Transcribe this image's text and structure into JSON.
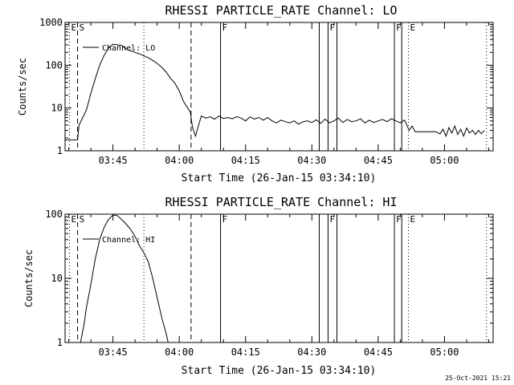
{
  "stamp": "25-Oct-2021 15:21",
  "chart_data": [
    {
      "type": "line",
      "title": "RHESSI PARTICLE_RATE Channel: LO",
      "xlabel": "Start Time (26-Jan-15 03:34:10)",
      "ylabel": "Counts/sec",
      "y_scale": "log",
      "ylim": [
        1,
        1000
      ],
      "xlim": [
        "03:34:10",
        "05:11:00"
      ],
      "yticks": [
        "1",
        "10",
        "100",
        "1000"
      ],
      "xticks": [
        "03:45",
        "04:00",
        "04:15",
        "04:30",
        "04:45",
        "05:00"
      ],
      "legend": {
        "placement": "top-left",
        "label": "Channel: LO"
      },
      "series": [
        {
          "name": "Channel: LO",
          "points": [
            [
              "03:34:10",
              1.8
            ],
            [
              "03:37:00",
              1.8
            ],
            [
              "03:37:20",
              4.0
            ],
            [
              "03:38:00",
              5.5
            ],
            [
              "03:39:00",
              9
            ],
            [
              "03:40:00",
              22
            ],
            [
              "03:41:00",
              48
            ],
            [
              "03:42:00",
              100
            ],
            [
              "03:43:00",
              170
            ],
            [
              "03:44:00",
              250
            ],
            [
              "03:45:00",
              310
            ],
            [
              "03:46:00",
              300
            ],
            [
              "03:47:00",
              290
            ],
            [
              "03:48:00",
              240
            ],
            [
              "03:49:00",
              220
            ],
            [
              "03:50:00",
              200
            ],
            [
              "03:51:00",
              185
            ],
            [
              "03:52:00",
              165
            ],
            [
              "03:53:00",
              150
            ],
            [
              "03:54:00",
              130
            ],
            [
              "03:55:00",
              110
            ],
            [
              "03:56:00",
              90
            ],
            [
              "03:57:00",
              70
            ],
            [
              "03:58:00",
              50
            ],
            [
              "03:59:00",
              38
            ],
            [
              "04:00:00",
              25
            ],
            [
              "04:01:00",
              14
            ],
            [
              "04:02:30",
              8
            ],
            [
              "04:03:00",
              3.5
            ],
            [
              "04:03:40",
              2.2
            ],
            [
              "04:04:20",
              3.8
            ],
            [
              "04:05:00",
              6.5
            ],
            [
              "04:06:00",
              5.8
            ],
            [
              "04:07:00",
              6.2
            ],
            [
              "04:08:00",
              5.5
            ],
            [
              "04:09:00",
              6.5
            ],
            [
              "04:10:00",
              5.7
            ],
            [
              "04:11:00",
              6.0
            ],
            [
              "04:12:00",
              5.6
            ],
            [
              "04:13:00",
              6.3
            ],
            [
              "04:14:00",
              5.8
            ],
            [
              "04:15:00",
              5.0
            ],
            [
              "04:16:00",
              6.2
            ],
            [
              "04:17:00",
              5.5
            ],
            [
              "04:18:00",
              6.0
            ],
            [
              "04:19:00",
              5.2
            ],
            [
              "04:20:00",
              6.0
            ],
            [
              "04:21:00",
              5.0
            ],
            [
              "04:22:00",
              4.5
            ],
            [
              "04:23:00",
              5.2
            ],
            [
              "04:24:00",
              4.8
            ],
            [
              "04:25:00",
              4.5
            ],
            [
              "04:26:00",
              5.0
            ],
            [
              "04:27:00",
              4.2
            ],
            [
              "04:28:00",
              4.8
            ],
            [
              "04:29:00",
              5.0
            ],
            [
              "04:30:00",
              4.6
            ],
            [
              "04:31:00",
              5.3
            ],
            [
              "04:32:00",
              4.4
            ],
            [
              "04:33:00",
              5.5
            ],
            [
              "04:34:00",
              4.5
            ],
            [
              "04:35:00",
              5.0
            ],
            [
              "04:36:00",
              5.8
            ],
            [
              "04:37:00",
              4.6
            ],
            [
              "04:38:00",
              5.4
            ],
            [
              "04:39:00",
              4.8
            ],
            [
              "04:40:00",
              5.0
            ],
            [
              "04:41:00",
              5.6
            ],
            [
              "04:42:00",
              4.5
            ],
            [
              "04:43:00",
              5.2
            ],
            [
              "04:44:00",
              4.6
            ],
            [
              "04:45:00",
              5.0
            ],
            [
              "04:46:00",
              5.4
            ],
            [
              "04:47:00",
              4.8
            ],
            [
              "04:48:00",
              5.6
            ],
            [
              "04:49:00",
              5.0
            ],
            [
              "04:50:00",
              4.5
            ],
            [
              "04:51:00",
              5.2
            ],
            [
              "04:52:00",
              3.0
            ],
            [
              "04:52:40",
              3.8
            ],
            [
              "04:53:20",
              2.8
            ],
            [
              "04:55:00",
              2.8
            ],
            [
              "04:58:00",
              2.8
            ],
            [
              "04:59:00",
              2.5
            ],
            [
              "04:59:40",
              3.2
            ],
            [
              "05:00:20",
              2.2
            ],
            [
              "05:01:00",
              3.5
            ],
            [
              "05:01:40",
              2.6
            ],
            [
              "05:02:20",
              3.8
            ],
            [
              "05:03:00",
              2.4
            ],
            [
              "05:03:40",
              3.2
            ],
            [
              "05:04:20",
              2.2
            ],
            [
              "05:05:00",
              3.4
            ],
            [
              "05:05:40",
              2.6
            ],
            [
              "05:06:20",
              3.0
            ],
            [
              "05:07:00",
              2.4
            ],
            [
              "05:07:40",
              3.0
            ],
            [
              "05:08:20",
              2.5
            ],
            [
              "05:09:00",
              3.0
            ]
          ]
        }
      ]
    },
    {
      "type": "line",
      "title": "RHESSI PARTICLE_RATE Channel: HI",
      "xlabel": "Start Time (26-Jan-15 03:34:10)",
      "ylabel": "Counts/sec",
      "y_scale": "log",
      "ylim": [
        1,
        100
      ],
      "xlim": [
        "03:34:10",
        "05:11:00"
      ],
      "yticks": [
        "1",
        "10",
        "100"
      ],
      "xticks": [
        "03:45",
        "04:00",
        "04:15",
        "04:30",
        "04:45",
        "05:00"
      ],
      "legend": {
        "placement": "top-left",
        "label": "Channel: HI"
      },
      "series": [
        {
          "name": "Channel: HI",
          "points": [
            [
              "03:37:40",
              1.0
            ],
            [
              "03:38:30",
              2.0
            ],
            [
              "03:39:00",
              3.5
            ],
            [
              "03:40:00",
              8
            ],
            [
              "03:41:00",
              20
            ],
            [
              "03:42:00",
              40
            ],
            [
              "03:43:00",
              62
            ],
            [
              "03:44:00",
              83
            ],
            [
              "03:45:00",
              97
            ],
            [
              "03:46:00",
              95
            ],
            [
              "03:47:00",
              82
            ],
            [
              "03:48:00",
              70
            ],
            [
              "03:49:00",
              58
            ],
            [
              "03:50:00",
              45
            ],
            [
              "03:51:00",
              32
            ],
            [
              "03:52:00",
              25
            ],
            [
              "03:53:00",
              18
            ],
            [
              "03:54:00",
              10
            ],
            [
              "03:55:00",
              5
            ],
            [
              "03:56:00",
              2.5
            ],
            [
              "03:57:00",
              1.4
            ],
            [
              "03:57:30",
              1.0
            ]
          ]
        }
      ]
    }
  ],
  "markers": [
    {
      "label": "E",
      "time": "03:35:10",
      "style": "dotted",
      "shows_label": true
    },
    {
      "label": "S",
      "time": "03:37:00",
      "style": "dashed",
      "shows_label": true
    },
    {
      "label": "",
      "time": "03:52:00",
      "style": "dotted",
      "shows_label": false
    },
    {
      "label": "",
      "time": "04:02:40",
      "style": "dashed",
      "shows_label": false
    },
    {
      "label": "F",
      "time": "04:09:20",
      "style": "solid",
      "shows_label": true
    },
    {
      "label": "",
      "time": "04:31:40",
      "style": "solid",
      "shows_label": false
    },
    {
      "label": "F",
      "time": "04:33:40",
      "style": "solid",
      "shows_label": true
    },
    {
      "label": "",
      "time": "04:35:40",
      "style": "solid",
      "shows_label": false
    },
    {
      "label": "F",
      "time": "04:48:40",
      "style": "solid",
      "shows_label": true
    },
    {
      "label": "",
      "time": "04:50:20",
      "style": "solid",
      "shows_label": false
    },
    {
      "label": "E",
      "time": "04:51:50",
      "style": "dotted",
      "shows_label": true
    },
    {
      "label": "",
      "time": "05:09:30",
      "style": "dotted",
      "shows_label": false
    }
  ]
}
